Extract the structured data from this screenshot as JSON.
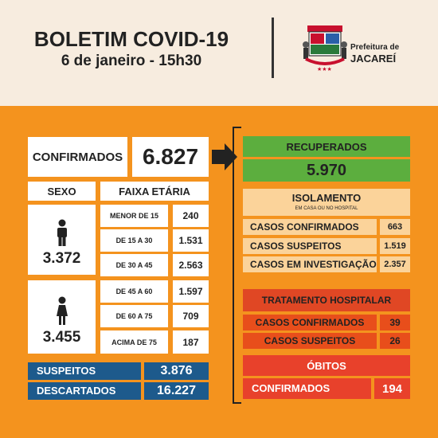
{
  "header": {
    "title": "BOLETIM COVID-19",
    "subtitle": "6 de janeiro - 15h30",
    "prefeitura_line1": "Prefeitura de",
    "prefeitura_line2": "JACAREÍ"
  },
  "confirmados": {
    "label": "CONFIRMADOS",
    "value": "6.827"
  },
  "sexo": {
    "header": "SEXO",
    "male_value": "3.372",
    "female_value": "3.455"
  },
  "faixa": {
    "header": "FAIXA ETÁRIA",
    "rows": [
      {
        "label": "MENOR DE 15",
        "value": "240"
      },
      {
        "label": "DE 15 A 30",
        "value": "1.531"
      },
      {
        "label": "DE 30 A 45",
        "value": "2.563"
      },
      {
        "label": "DE 45 A 60",
        "value": "1.597"
      },
      {
        "label": "DE 60 A 75",
        "value": "709"
      },
      {
        "label": "ACIMA DE 75",
        "value": "187"
      }
    ]
  },
  "suspeitos": {
    "label": "SUSPEITOS",
    "value": "3.876"
  },
  "descartados": {
    "label": "DESCARTADOS",
    "value": "16.227"
  },
  "recuperados": {
    "label": "RECUPERADOS",
    "value": "5.970"
  },
  "isolamento": {
    "title": "ISOLAMENTO",
    "subtitle": "EM CASA OU NO HOSPITAL",
    "rows": [
      {
        "label": "CASOS CONFIRMADOS",
        "value": "663"
      },
      {
        "label": "CASOS SUSPEITOS",
        "value": "1.519"
      },
      {
        "label": "CASOS EM INVESTIGAÇÃO",
        "value": "2.357"
      }
    ]
  },
  "tratamento": {
    "title": "TRATAMENTO HOSPITALAR",
    "rows": [
      {
        "label": "CASOS CONFIRMADOS",
        "value": "39"
      },
      {
        "label": "CASOS SUSPEITOS",
        "value": "26"
      }
    ]
  },
  "obitos": {
    "title": "ÓBITOS",
    "label": "CONFIRMADOS",
    "value": "194"
  },
  "icons": {
    "male": "male-person-icon",
    "female": "female-person-icon",
    "arrow": "arrow-right-icon",
    "logo": "city-coat-of-arms-icon"
  }
}
